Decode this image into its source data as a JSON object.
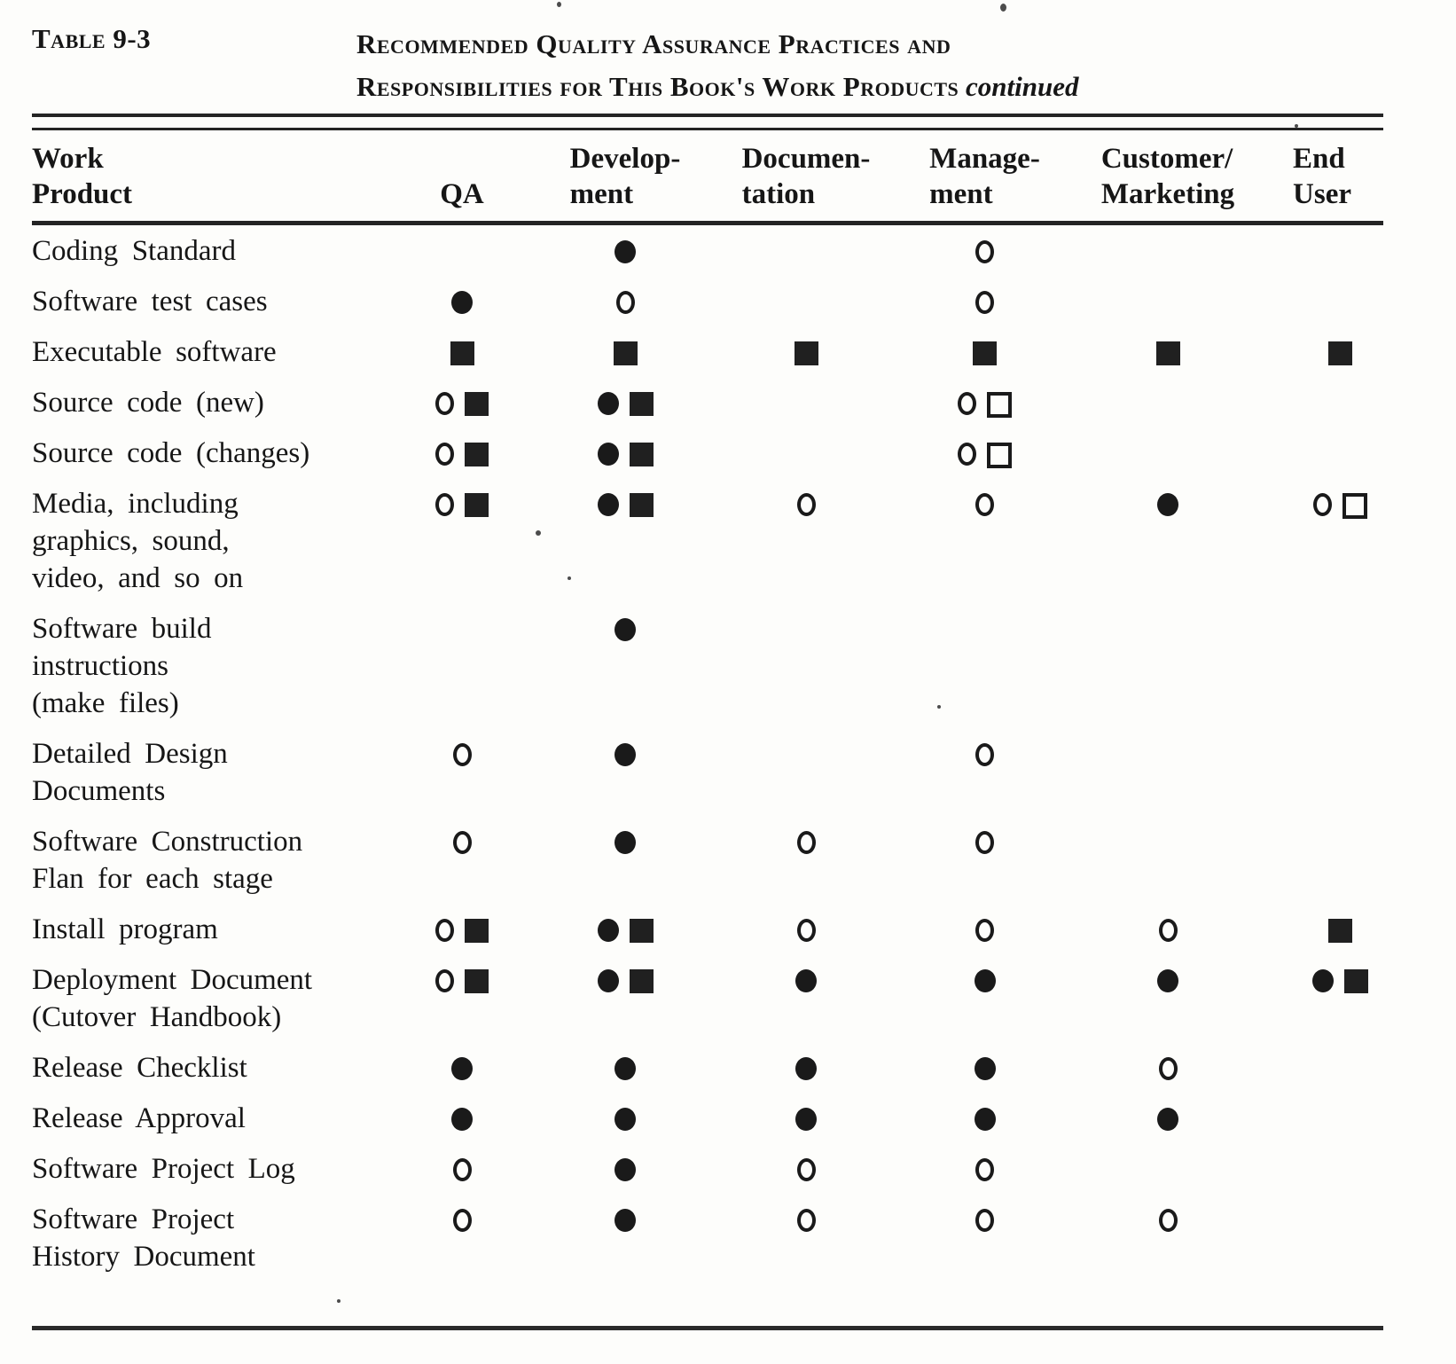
{
  "document": {
    "table_label": "Table 9-3",
    "title_line1": "Recommended Quality Assurance Practices and",
    "title_line2": "Responsibilities for This Book's Work Products",
    "title_suffix": "continued"
  },
  "table": {
    "columns": [
      {
        "id": "work_product",
        "lines": [
          "Work",
          "Product"
        ]
      },
      {
        "id": "qa",
        "lines": [
          "QA"
        ]
      },
      {
        "id": "development",
        "lines": [
          "Develop-",
          "ment"
        ]
      },
      {
        "id": "documentation",
        "lines": [
          "Documen-",
          "tation"
        ]
      },
      {
        "id": "management",
        "lines": [
          "Manage-",
          "ment"
        ]
      },
      {
        "id": "customer_marketing",
        "lines": [
          "Customer/",
          "Marketing"
        ]
      },
      {
        "id": "end_user",
        "lines": [
          "End",
          "User"
        ]
      }
    ],
    "rows": [
      {
        "label_lines": [
          "Coding Standard"
        ],
        "cells": [
          [],
          [
            "filled-circle"
          ],
          [],
          [
            "open-circle"
          ],
          [],
          []
        ]
      },
      {
        "label_lines": [
          "Software test cases"
        ],
        "cells": [
          [
            "filled-circle"
          ],
          [
            "open-circle"
          ],
          [],
          [
            "open-circle"
          ],
          [],
          []
        ]
      },
      {
        "label_lines": [
          "Executable software"
        ],
        "cells": [
          [
            "filled-square"
          ],
          [
            "filled-square"
          ],
          [
            "filled-square"
          ],
          [
            "filled-square"
          ],
          [
            "filled-square"
          ],
          [
            "filled-square"
          ]
        ]
      },
      {
        "label_lines": [
          "Source code (new)"
        ],
        "cells": [
          [
            "open-circle",
            "filled-square"
          ],
          [
            "filled-circle",
            "filled-square"
          ],
          [],
          [
            "open-circle",
            "open-square"
          ],
          [],
          []
        ]
      },
      {
        "label_lines": [
          "Source code (changes)"
        ],
        "cells": [
          [
            "open-circle",
            "filled-square"
          ],
          [
            "filled-circle",
            "filled-square"
          ],
          [],
          [
            "open-circle",
            "open-square"
          ],
          [],
          []
        ]
      },
      {
        "label_lines": [
          "Media, including",
          "graphics, sound,",
          "video, and so on"
        ],
        "cells": [
          [
            "open-circle",
            "filled-square"
          ],
          [
            "filled-circle",
            "filled-square"
          ],
          [
            "open-circle"
          ],
          [
            "open-circle"
          ],
          [
            "filled-circle"
          ],
          [
            "open-circle",
            "open-square"
          ]
        ]
      },
      {
        "label_lines": [
          "Software build",
          "instructions",
          "(make files)"
        ],
        "cells": [
          [],
          [
            "filled-circle"
          ],
          [],
          [],
          [],
          []
        ]
      },
      {
        "label_lines": [
          "Detailed Design",
          "Documents"
        ],
        "cells": [
          [
            "open-circle"
          ],
          [
            "filled-circle"
          ],
          [],
          [
            "open-circle"
          ],
          [],
          []
        ]
      },
      {
        "label_lines": [
          "Software Construction",
          "Flan for each stage"
        ],
        "cells": [
          [
            "open-circle"
          ],
          [
            "filled-circle"
          ],
          [
            "open-circle"
          ],
          [
            "open-circle"
          ],
          [],
          []
        ]
      },
      {
        "label_lines": [
          "Install program"
        ],
        "cells": [
          [
            "open-circle",
            "filled-square"
          ],
          [
            "filled-circle",
            "filled-square"
          ],
          [
            "open-circle"
          ],
          [
            "open-circle"
          ],
          [
            "open-circle"
          ],
          [
            "filled-square"
          ]
        ]
      },
      {
        "label_lines": [
          "Deployment Document",
          "(Cutover Handbook)"
        ],
        "cells": [
          [
            "open-circle",
            "filled-square"
          ],
          [
            "filled-circle",
            "filled-square"
          ],
          [
            "filled-circle"
          ],
          [
            "filled-circle"
          ],
          [
            "filled-circle"
          ],
          [
            "filled-circle",
            "filled-square"
          ]
        ]
      },
      {
        "label_lines": [
          "Release Checklist"
        ],
        "cells": [
          [
            "filled-circle"
          ],
          [
            "filled-circle"
          ],
          [
            "filled-circle"
          ],
          [
            "filled-circle"
          ],
          [
            "open-circle"
          ],
          []
        ]
      },
      {
        "label_lines": [
          "Release Approval"
        ],
        "cells": [
          [
            "filled-circle"
          ],
          [
            "filled-circle"
          ],
          [
            "filled-circle"
          ],
          [
            "filled-circle"
          ],
          [
            "filled-circle"
          ],
          []
        ]
      },
      {
        "label_lines": [
          "Software Project Log"
        ],
        "cells": [
          [
            "open-circle"
          ],
          [
            "filled-circle"
          ],
          [
            "open-circle"
          ],
          [
            "open-circle"
          ],
          [],
          []
        ]
      },
      {
        "label_lines": [
          "Software Project",
          "History Document"
        ],
        "cells": [
          [
            "open-circle"
          ],
          [
            "filled-circle"
          ],
          [
            "open-circle"
          ],
          [
            "open-circle"
          ],
          [
            "open-circle"
          ],
          []
        ]
      }
    ]
  },
  "icons": {
    "filled-circle": "primary responsibility marker (filled circle)",
    "open-circle": "review/approval marker (open circle)",
    "filled-square": "filled square marker",
    "open-square": "open square marker"
  }
}
